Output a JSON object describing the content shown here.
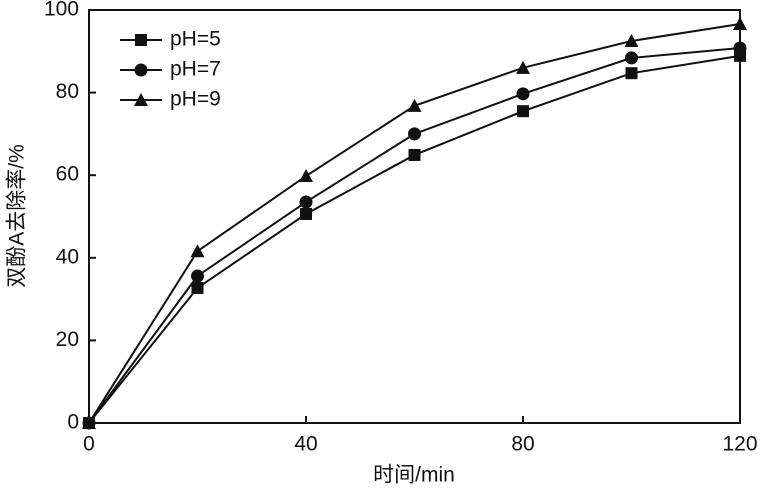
{
  "chart_data": {
    "type": "line",
    "x_label": "时间/min",
    "y_label": "双酚A去除率/%",
    "x": [
      0,
      20,
      40,
      60,
      80,
      100,
      120
    ],
    "series": [
      {
        "name": "pH=5",
        "color": "#111111",
        "marker": "square",
        "values": [
          0,
          32.7,
          50.6,
          64.9,
          75.5,
          84.7,
          88.9
        ]
      },
      {
        "name": "pH=7",
        "color": "#111111",
        "marker": "circle",
        "values": [
          0,
          35.6,
          53.5,
          70,
          79.7,
          88.4,
          90.8
        ]
      },
      {
        "name": "pH=9",
        "color": "#111111",
        "marker": "triangle",
        "values": [
          0,
          41.6,
          59.8,
          76.8,
          86,
          92.5,
          96.6
        ]
      }
    ],
    "xlim": [
      0,
      120
    ],
    "xticks": [
      0,
      40,
      80,
      120
    ],
    "ylim": [
      0,
      100
    ],
    "yticks": [
      0,
      20,
      40,
      60,
      80,
      100
    ],
    "legend": "top-left",
    "grid": false
  }
}
